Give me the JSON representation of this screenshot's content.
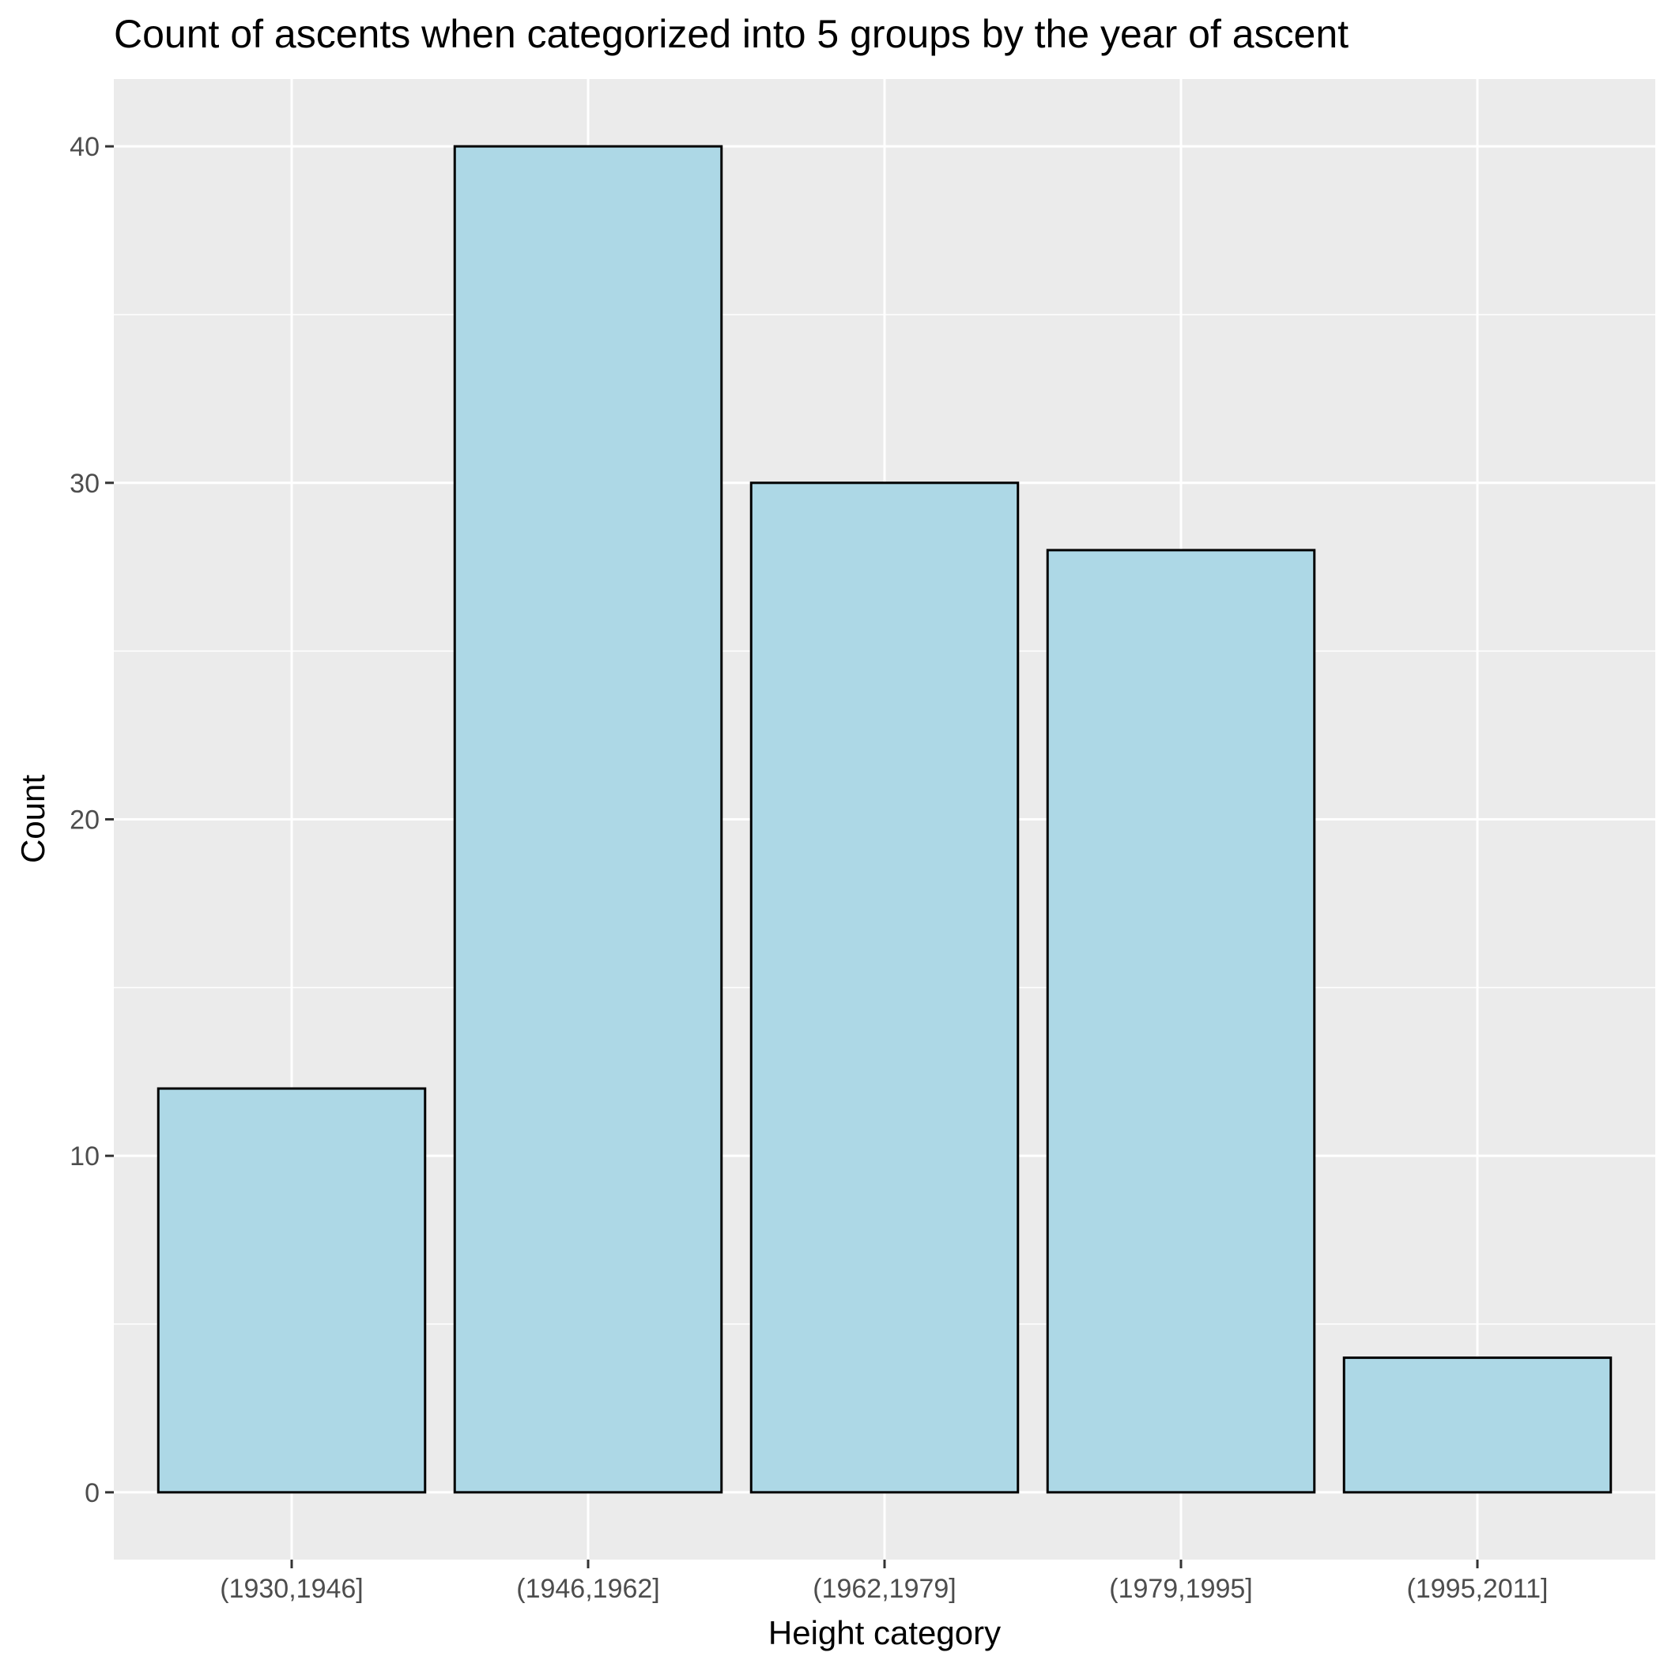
{
  "chart_data": {
    "type": "bar",
    "title": "Count of ascents when categorized into 5 groups by the year of ascent",
    "xlabel": "Height category",
    "ylabel": "Count",
    "categories": [
      "(1930,1946]",
      "(1946,1962]",
      "(1962,1979]",
      "(1979,1995]",
      "(1995,2011]"
    ],
    "values": [
      12,
      40,
      30,
      28,
      4
    ],
    "ylim": [
      -2,
      42
    ],
    "yticks": [
      0,
      10,
      20,
      30,
      40
    ],
    "grid": true,
    "legend": "none",
    "colors": {
      "bar_fill": "#add8e6",
      "bar_stroke": "#000000",
      "panel_background": "#ebebeb",
      "grid_line": "#ffffff",
      "tick_text": "#4d4d4d"
    }
  }
}
